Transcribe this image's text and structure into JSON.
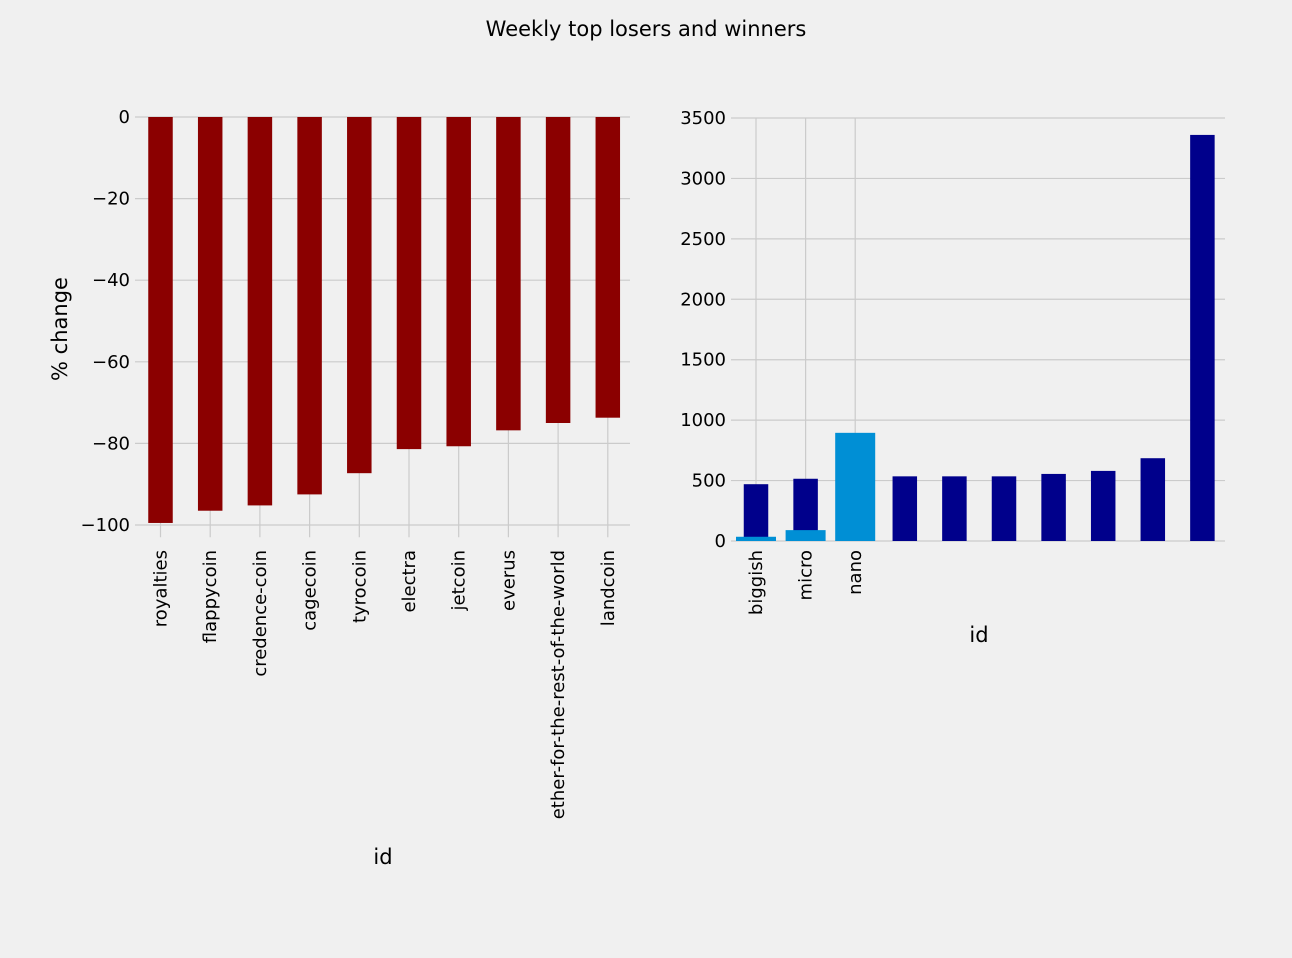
{
  "figure": {
    "title": "Weekly top losers and winners",
    "background": "#f0f0f0",
    "grid_color": "#cbcbcb"
  },
  "chart_data": [
    {
      "type": "bar",
      "title": "",
      "xlabel": "id",
      "ylabel": "% change",
      "ylim": [
        -103,
        0
      ],
      "yticks": [
        0,
        -20,
        -40,
        -60,
        -80,
        -100
      ],
      "ytick_labels": [
        "0",
        "−20",
        "−40",
        "−60",
        "−80",
        "−100"
      ],
      "grid": true,
      "color": "#8b0000",
      "categories": [
        "royalties",
        "flappycoin",
        "credence-coin",
        "cagecoin",
        "tyrocoin",
        "electra",
        "jetcoin",
        "everus",
        "ether-for-the-rest-of-the-world",
        "landcoin"
      ],
      "values": [
        -99.5,
        -96.5,
        -95.2,
        -92.5,
        -87.3,
        -81.4,
        -80.7,
        -76.8,
        -75.0,
        -73.7
      ]
    },
    {
      "type": "bar",
      "title": "",
      "xlabel": "id",
      "ylabel": "",
      "ylim": [
        0,
        3500
      ],
      "yticks": [
        0,
        500,
        1000,
        1500,
        2000,
        2500,
        3000,
        3500
      ],
      "ytick_labels": [
        "0",
        "500",
        "1000",
        "1500",
        "2000",
        "2500",
        "3000",
        "3500"
      ],
      "grid": true,
      "tick_categories": [
        "biggish",
        "micro",
        "nano"
      ],
      "series": [
        {
          "color": "#00008b",
          "values": [
            470,
            515,
            null,
            535,
            535,
            535,
            555,
            580,
            685,
            3360
          ]
        },
        {
          "color": "#008fd5",
          "values": [
            35,
            90,
            895
          ]
        }
      ]
    }
  ]
}
